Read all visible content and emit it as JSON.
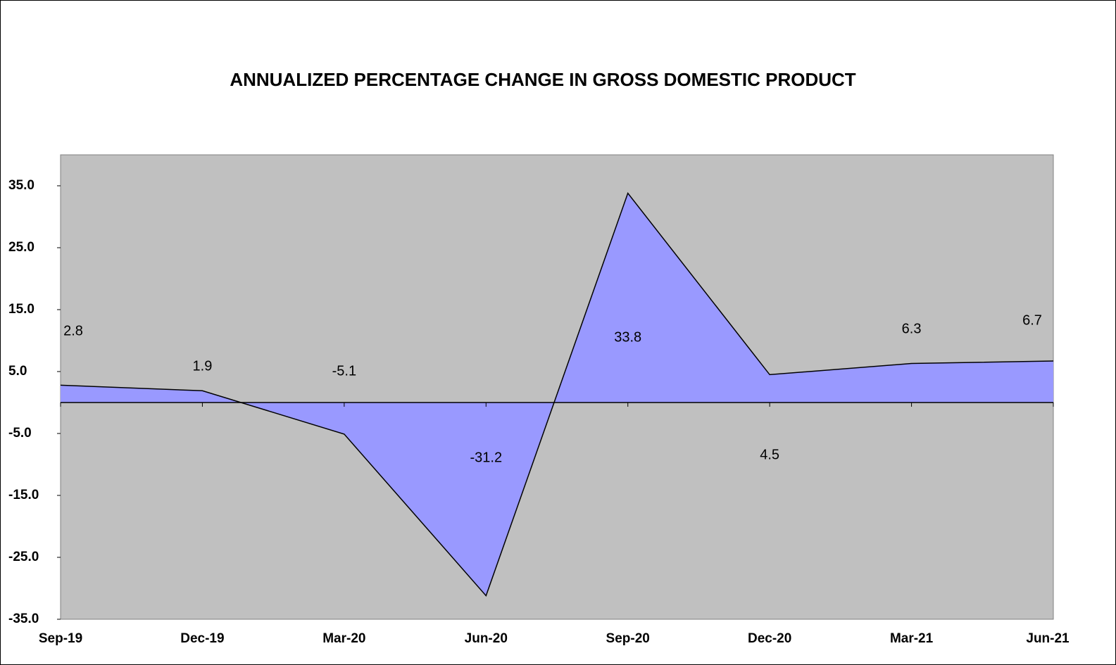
{
  "chart_data": {
    "type": "area",
    "title": "ANNUALIZED PERCENTAGE CHANGE IN GROSS DOMESTIC PRODUCT",
    "categories": [
      "Sep-19",
      "Dec-19",
      "Mar-20",
      "Jun-20",
      "Sep-20",
      "Dec-20",
      "Mar-21",
      "Jun-21"
    ],
    "values": [
      2.8,
      1.9,
      -5.1,
      -31.2,
      33.8,
      4.5,
      6.3,
      6.7
    ],
    "color": "#9999ff",
    "ylim": [
      -35,
      40
    ],
    "yticks": [
      {
        "value": -35,
        "label": "-35.0"
      },
      {
        "value": -25,
        "label": "-25.0"
      },
      {
        "value": -15,
        "label": "-15.0"
      },
      {
        "value": -5,
        "label": "-5.0"
      },
      {
        "value": 5,
        "label": "5.0"
      },
      {
        "value": 15,
        "label": "15.0"
      },
      {
        "value": 25,
        "label": "25.0"
      },
      {
        "value": 35,
        "label": "35.0"
      }
    ],
    "grid": false
  }
}
